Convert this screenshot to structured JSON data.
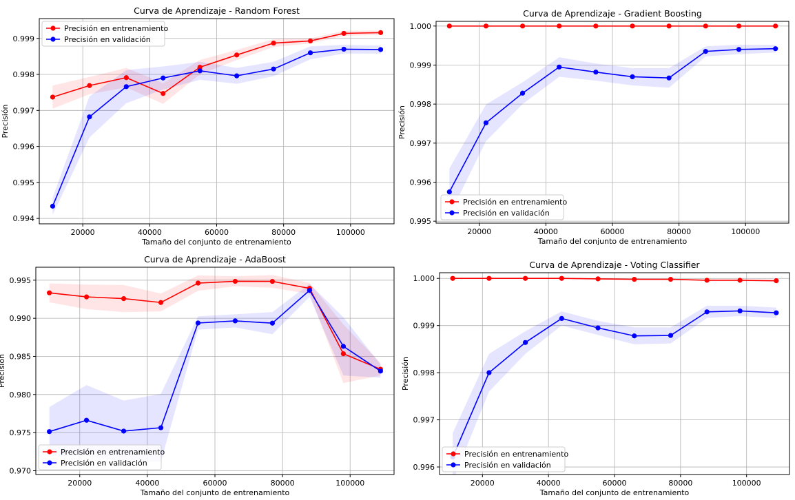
{
  "colors": {
    "train": "#ff0000",
    "val": "#0000ff",
    "grid": "#b0b0b0",
    "axis": "#000000"
  },
  "legend": {
    "train_label": "Precisión en entrenamiento",
    "val_label": "Precisión en validación"
  },
  "chart_data": [
    {
      "type": "line",
      "title": "Curva de Aprendizaje - Random Forest",
      "xlabel": "Tamaño del conjunto de entrenamiento",
      "ylabel": "Precisión",
      "xlim": [
        7000,
        113000
      ],
      "ylim": [
        0.99385,
        0.99955
      ],
      "xticks": [
        20000,
        40000,
        60000,
        80000,
        100000
      ],
      "yticks": [
        0.994,
        0.995,
        0.996,
        0.997,
        0.998,
        0.999
      ],
      "ytick_labels": [
        "0.994",
        "0.995",
        "0.996",
        "0.997",
        "0.998",
        "0.999"
      ],
      "legend_position": "upper left",
      "grid": true,
      "x": [
        11000,
        22000,
        33000,
        44000,
        55000,
        66000,
        77000,
        88000,
        98000,
        109000
      ],
      "series": [
        {
          "name": "Precisión en entrenamiento",
          "color": "#ff0000",
          "values": [
            0.99737,
            0.99769,
            0.99791,
            0.99747,
            0.9982,
            0.99854,
            0.99887,
            0.99893,
            0.99914,
            0.99916
          ],
          "lower": [
            0.99705,
            0.99745,
            0.99764,
            0.99718,
            0.998,
            0.9984,
            0.99876,
            0.99886,
            0.99907,
            0.9991
          ],
          "upper": [
            0.99769,
            0.99793,
            0.99818,
            0.99776,
            0.9984,
            0.99868,
            0.99898,
            0.999,
            0.99921,
            0.99922
          ]
        },
        {
          "name": "Precisión en validación",
          "color": "#0000ff",
          "values": [
            0.99434,
            0.99682,
            0.99766,
            0.9979,
            0.9981,
            0.99796,
            0.99815,
            0.9986,
            0.9987,
            0.99869
          ],
          "lower": [
            0.9941,
            0.99625,
            0.9972,
            0.99758,
            0.99785,
            0.99774,
            0.99795,
            0.99842,
            0.99858,
            0.99858
          ],
          "upper": [
            0.99458,
            0.99739,
            0.99812,
            0.99822,
            0.99835,
            0.99818,
            0.99835,
            0.99878,
            0.99882,
            0.9988
          ]
        }
      ]
    },
    {
      "type": "line",
      "title": "Curva de Aprendizaje - Gradient Boosting",
      "xlabel": "Tamaño del conjunto de entrenamiento",
      "ylabel": "Precisión",
      "xlim": [
        7000,
        113000
      ],
      "ylim": [
        0.99495,
        1.00012
      ],
      "xticks": [
        20000,
        40000,
        60000,
        80000,
        100000
      ],
      "yticks": [
        0.995,
        0.996,
        0.997,
        0.998,
        0.999,
        1.0
      ],
      "ytick_labels": [
        "0.995",
        "0.996",
        "0.997",
        "0.998",
        "0.999",
        "1.000"
      ],
      "legend_position": "lower left",
      "grid": true,
      "x": [
        11000,
        22000,
        33000,
        44000,
        55000,
        66000,
        77000,
        88000,
        98000,
        109000
      ],
      "series": [
        {
          "name": "Precisión en entrenamiento",
          "color": "#ff0000",
          "values": [
            1.0,
            1.0,
            1.0,
            1.0,
            1.0,
            1.0,
            1.0,
            1.0,
            1.0,
            1.0
          ],
          "lower": [
            1.0,
            1.0,
            1.0,
            1.0,
            1.0,
            1.0,
            1.0,
            1.0,
            1.0,
            1.0
          ],
          "upper": [
            1.0,
            1.0,
            1.0,
            1.0,
            1.0,
            1.0,
            1.0,
            1.0,
            1.0,
            1.0
          ]
        },
        {
          "name": "Precisión en validación",
          "color": "#0000ff",
          "values": [
            0.99575,
            0.99752,
            0.99828,
            0.99895,
            0.99882,
            0.9987,
            0.99867,
            0.99935,
            0.9994,
            0.99942
          ],
          "lower": [
            0.99515,
            0.99705,
            0.998,
            0.9987,
            0.9986,
            0.99848,
            0.99842,
            0.99922,
            0.99928,
            0.99932
          ],
          "upper": [
            0.99635,
            0.99799,
            0.99856,
            0.9992,
            0.99904,
            0.99892,
            0.99892,
            0.99948,
            0.99952,
            0.99952
          ]
        }
      ]
    },
    {
      "type": "line",
      "title": "Curva de Aprendizaje - AdaBoost",
      "xlabel": "Tamaño del conjunto de entrenamiento",
      "ylabel": "Precisión",
      "xlim": [
        7000,
        113000
      ],
      "ylim": [
        0.9695,
        0.9967
      ],
      "xticks": [
        20000,
        40000,
        60000,
        80000,
        100000
      ],
      "yticks": [
        0.97,
        0.975,
        0.98,
        0.985,
        0.99,
        0.995
      ],
      "ytick_labels": [
        "0.970",
        "0.975",
        "0.980",
        "0.985",
        "0.990",
        "0.995"
      ],
      "legend_position": "lower left",
      "grid": true,
      "x": [
        11000,
        22000,
        33000,
        44000,
        55000,
        66000,
        77000,
        88000,
        98000,
        109000
      ],
      "series": [
        {
          "name": "Precisión en entrenamiento",
          "color": "#ff0000",
          "values": [
            0.99334,
            0.99281,
            0.99258,
            0.99207,
            0.99462,
            0.99485,
            0.99484,
            0.99392,
            0.98535,
            0.98332
          ],
          "lower": [
            0.9921,
            0.9912,
            0.9908,
            0.9909,
            0.9936,
            0.9942,
            0.994,
            0.9932,
            0.9815,
            0.9825
          ],
          "upper": [
            0.99458,
            0.99442,
            0.99436,
            0.99324,
            0.99564,
            0.9955,
            0.99568,
            0.99464,
            0.9892,
            0.98414
          ]
        },
        {
          "name": "Precisión en validación",
          "color": "#0000ff",
          "values": [
            0.97513,
            0.97662,
            0.9752,
            0.97564,
            0.98938,
            0.98966,
            0.98936,
            0.99366,
            0.98632,
            0.98307
          ],
          "lower": [
            0.9719,
            0.972,
            0.9712,
            0.9712,
            0.9885,
            0.9888,
            0.9879,
            0.9928,
            0.9825,
            0.9822
          ],
          "upper": [
            0.97836,
            0.98124,
            0.9792,
            0.98008,
            0.99026,
            0.99052,
            0.99082,
            0.99452,
            0.99014,
            0.98394
          ]
        }
      ]
    },
    {
      "type": "line",
      "title": "Curva de Aprendizaje - Voting Classifier",
      "xlabel": "Tamaño del conjunto de entrenamiento",
      "ylabel": "Precisión",
      "xlim": [
        7000,
        113000
      ],
      "ylim": [
        0.99584,
        1.00012
      ],
      "xticks": [
        20000,
        40000,
        60000,
        80000,
        100000
      ],
      "yticks": [
        0.996,
        0.997,
        0.998,
        0.999,
        1.0
      ],
      "ytick_labels": [
        "0.996",
        "0.997",
        "0.998",
        "0.999",
        "1.000"
      ],
      "legend_position": "lower left",
      "grid": true,
      "x": [
        11000,
        22000,
        33000,
        44000,
        55000,
        66000,
        77000,
        88000,
        98000,
        109000
      ],
      "series": [
        {
          "name": "Precisión en entrenamiento",
          "color": "#ff0000",
          "values": [
            1.0,
            1.0,
            1.0,
            1.0,
            0.99999,
            0.99998,
            0.99998,
            0.99996,
            0.99996,
            0.99995
          ],
          "lower": [
            0.99999,
            0.99999,
            0.99999,
            0.99999,
            0.99998,
            0.99997,
            0.99997,
            0.99994,
            0.99994,
            0.99993
          ],
          "upper": [
            1.0,
            1.0,
            1.0,
            1.0,
            1.0,
            0.99999,
            0.99999,
            0.99998,
            0.99998,
            0.99997
          ]
        },
        {
          "name": "Precisión en validación",
          "color": "#0000ff",
          "values": [
            0.99621,
            0.998,
            0.99864,
            0.99915,
            0.99895,
            0.99878,
            0.99879,
            0.99929,
            0.99931,
            0.99927
          ],
          "lower": [
            0.9957,
            0.9976,
            0.9984,
            0.999,
            0.9988,
            0.9986,
            0.99862,
            0.99916,
            0.9992,
            0.99916
          ],
          "upper": [
            0.99672,
            0.9984,
            0.99888,
            0.9993,
            0.9991,
            0.99896,
            0.99896,
            0.99942,
            0.99942,
            0.99938
          ]
        }
      ]
    }
  ]
}
